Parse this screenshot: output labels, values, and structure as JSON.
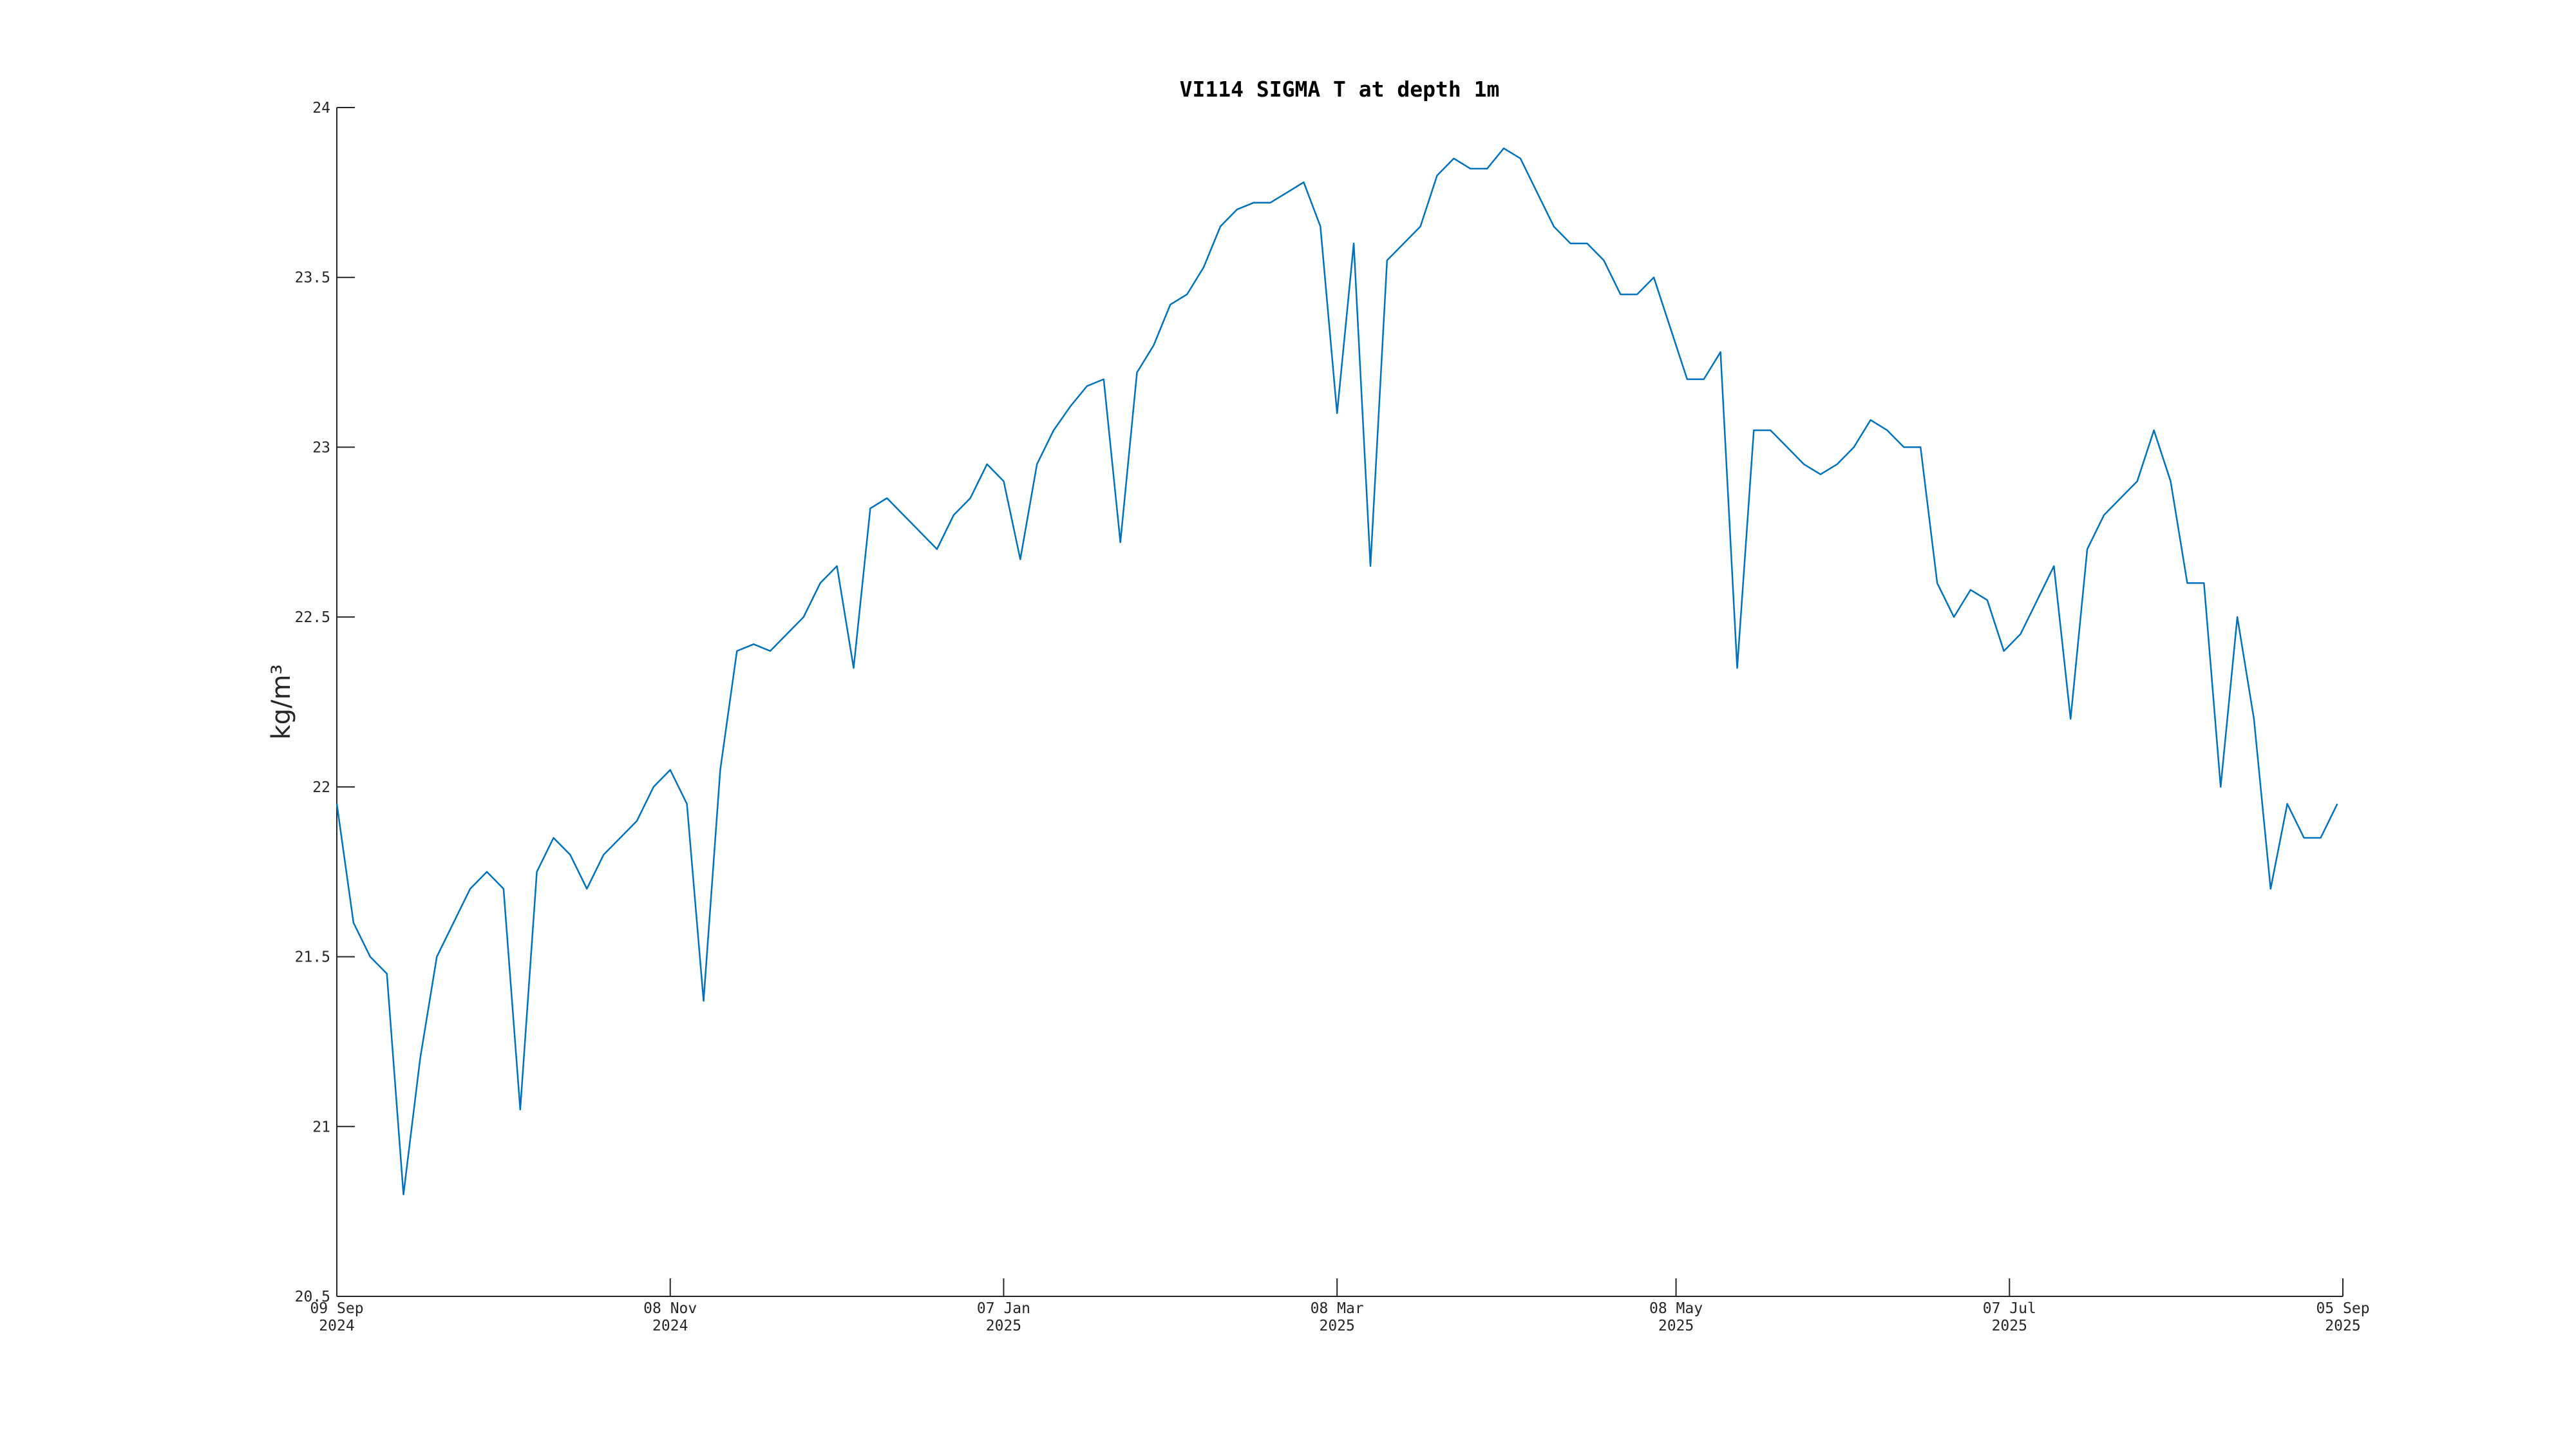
{
  "chart_data": {
    "type": "line",
    "title": "VI114 SIGMA T at depth 1m",
    "ylabel": "kg/m³",
    "color": "#0072bd",
    "xlim": [
      "2024-09-09",
      "2025-09-05"
    ],
    "xticks": [
      {
        "value": "2024-09-09",
        "label": "09 Sep\n2024"
      },
      {
        "value": "2024-11-08",
        "label": "08 Nov\n2024"
      },
      {
        "value": "2025-01-07",
        "label": "07 Jan\n2025"
      },
      {
        "value": "2025-03-08",
        "label": "08 Mar\n2025"
      },
      {
        "value": "2025-05-08",
        "label": "08 May\n2025"
      },
      {
        "value": "2025-07-07",
        "label": "07 Jul\n2025"
      },
      {
        "value": "2025-09-05",
        "label": "05 Sep\n2025"
      }
    ],
    "ylim": [
      20.5,
      24
    ],
    "yticks": [
      20.5,
      21,
      21.5,
      22,
      22.5,
      23,
      23.5,
      24
    ],
    "x": [
      "2024-09-09",
      "2024-09-12",
      "2024-09-15",
      "2024-09-18",
      "2024-09-21",
      "2024-09-24",
      "2024-09-27",
      "2024-09-30",
      "2024-10-03",
      "2024-10-06",
      "2024-10-09",
      "2024-10-12",
      "2024-10-15",
      "2024-10-18",
      "2024-10-21",
      "2024-10-24",
      "2024-10-27",
      "2024-10-30",
      "2024-11-02",
      "2024-11-05",
      "2024-11-08",
      "2024-11-11",
      "2024-11-14",
      "2024-11-17",
      "2024-11-20",
      "2024-11-23",
      "2024-11-26",
      "2024-11-29",
      "2024-12-02",
      "2024-12-05",
      "2024-12-08",
      "2024-12-11",
      "2024-12-14",
      "2024-12-17",
      "2024-12-20",
      "2024-12-23",
      "2024-12-26",
      "2024-12-29",
      "2025-01-01",
      "2025-01-04",
      "2025-01-07",
      "2025-01-10",
      "2025-01-13",
      "2025-01-16",
      "2025-01-19",
      "2025-01-22",
      "2025-01-25",
      "2025-01-28",
      "2025-01-31",
      "2025-02-03",
      "2025-02-06",
      "2025-02-09",
      "2025-02-12",
      "2025-02-15",
      "2025-02-18",
      "2025-02-21",
      "2025-02-24",
      "2025-02-27",
      "2025-03-02",
      "2025-03-05",
      "2025-03-08",
      "2025-03-11",
      "2025-03-14",
      "2025-03-17",
      "2025-03-20",
      "2025-03-23",
      "2025-03-26",
      "2025-03-29",
      "2025-04-01",
      "2025-04-04",
      "2025-04-07",
      "2025-04-10",
      "2025-04-13",
      "2025-04-16",
      "2025-04-19",
      "2025-04-22",
      "2025-04-25",
      "2025-04-28",
      "2025-05-01",
      "2025-05-04",
      "2025-05-07",
      "2025-05-10",
      "2025-05-13",
      "2025-05-16",
      "2025-05-19",
      "2025-05-22",
      "2025-05-25",
      "2025-05-28",
      "2025-05-31",
      "2025-06-03",
      "2025-06-06",
      "2025-06-09",
      "2025-06-12",
      "2025-06-15",
      "2025-06-18",
      "2025-06-21",
      "2025-06-24",
      "2025-06-27",
      "2025-06-30",
      "2025-07-03",
      "2025-07-06",
      "2025-07-09",
      "2025-07-12",
      "2025-07-15",
      "2025-07-18",
      "2025-07-21",
      "2025-07-24",
      "2025-07-27",
      "2025-07-30",
      "2025-08-02",
      "2025-08-05",
      "2025-08-08",
      "2025-08-11",
      "2025-08-14",
      "2025-08-17",
      "2025-08-20",
      "2025-08-23",
      "2025-08-26",
      "2025-08-29",
      "2025-09-01",
      "2025-09-04"
    ],
    "values": [
      21.95,
      21.6,
      21.5,
      21.45,
      20.8,
      21.2,
      21.5,
      21.6,
      21.7,
      21.75,
      21.7,
      21.05,
      21.75,
      21.85,
      21.8,
      21.7,
      21.8,
      21.85,
      21.9,
      22.0,
      22.05,
      21.95,
      21.37,
      22.05,
      22.4,
      22.42,
      22.4,
      22.45,
      22.5,
      22.6,
      22.65,
      22.35,
      22.82,
      22.85,
      22.8,
      22.75,
      22.7,
      22.8,
      22.85,
      22.95,
      22.9,
      22.67,
      22.95,
      23.05,
      23.12,
      23.18,
      23.2,
      22.72,
      23.22,
      23.3,
      23.42,
      23.45,
      23.53,
      23.65,
      23.7,
      23.72,
      23.72,
      23.75,
      23.78,
      23.65,
      23.1,
      23.6,
      22.65,
      23.55,
      23.6,
      23.65,
      23.8,
      23.85,
      23.82,
      23.82,
      23.88,
      23.85,
      23.75,
      23.65,
      23.6,
      23.6,
      23.55,
      23.45,
      23.45,
      23.5,
      23.35,
      23.2,
      23.2,
      23.28,
      22.35,
      23.05,
      23.05,
      23.0,
      22.95,
      22.92,
      22.95,
      23.0,
      23.08,
      23.05,
      23.0,
      23.0,
      22.6,
      22.5,
      22.58,
      22.55,
      22.4,
      22.45,
      22.55,
      22.65,
      22.2,
      22.7,
      22.8,
      22.85,
      22.9,
      23.05,
      22.9,
      22.6,
      22.6,
      22.0,
      22.5,
      22.2,
      21.7,
      21.95,
      21.85,
      21.85,
      21.95
    ]
  }
}
